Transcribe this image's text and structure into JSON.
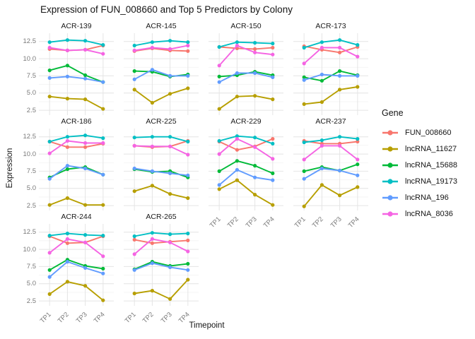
{
  "title": "Expression of FUN_008660 and Top 5 Predictors by Colony",
  "axes": {
    "x_label": "Timepoint",
    "y_label": "Expression",
    "y_tick_labels": [
      "12.5",
      "10.0",
      "7.5",
      "5.0",
      "2.5"
    ],
    "x_ticks": [
      "TP1",
      "TP2",
      "TP3",
      "TP4"
    ]
  },
  "legend": {
    "title": "Gene",
    "entries": [
      {
        "label": "FUN_008660",
        "color": "#F8766D"
      },
      {
        "label": "lncRNA_11627",
        "color": "#B79F00"
      },
      {
        "label": "lncRNA_15688",
        "color": "#00BA38"
      },
      {
        "label": "lncRNA_19173",
        "color": "#00BFC4"
      },
      {
        "label": "lncRNA_196",
        "color": "#619CFF"
      },
      {
        "label": "lncRNA_8036",
        "color": "#F564E3"
      }
    ]
  },
  "chart_data": {
    "type": "line",
    "x": [
      "TP1",
      "TP2",
      "TP3",
      "TP4"
    ],
    "xlabel": "Timepoint",
    "ylabel": "Expression",
    "ylim": [
      1.8,
      13.7
    ],
    "y_major_gridlines": [
      2.5,
      5.0,
      7.5,
      10.0,
      12.5
    ],
    "y_minor_gridlines": [
      3.75,
      6.25,
      8.75,
      11.25
    ],
    "legend_position": "right",
    "series_order": [
      "FUN_008660",
      "lncRNA_11627",
      "lncRNA_15688",
      "lncRNA_19173",
      "lncRNA_196",
      "lncRNA_8036"
    ],
    "facets": [
      {
        "colony": "ACR-139",
        "series": {
          "FUN_008660": [
            11.4,
            11.2,
            11.3,
            11.9
          ],
          "lncRNA_11627": [
            4.5,
            4.2,
            4.1,
            2.7
          ],
          "lncRNA_15688": [
            8.3,
            9.0,
            7.6,
            6.6
          ],
          "lncRNA_19173": [
            12.4,
            12.7,
            12.6,
            12.0
          ],
          "lncRNA_196": [
            7.2,
            7.4,
            7.1,
            6.6
          ],
          "lncRNA_8036": [
            11.6,
            11.2,
            11.3,
            10.7
          ]
        }
      },
      {
        "colony": "ACR-145",
        "series": {
          "FUN_008660": [
            11.1,
            11.5,
            11.2,
            11.1
          ],
          "lncRNA_11627": [
            5.5,
            3.6,
            4.9,
            5.7
          ],
          "lncRNA_15688": [
            8.2,
            8.1,
            7.4,
            7.7
          ],
          "lncRNA_19173": [
            11.9,
            12.4,
            12.6,
            12.4
          ],
          "lncRNA_196": [
            7.0,
            8.4,
            7.5,
            7.5
          ],
          "lncRNA_8036": [
            11.2,
            11.6,
            11.4,
            11.9
          ]
        }
      },
      {
        "colony": "ACR-150",
        "series": {
          "FUN_008660": [
            11.7,
            11.5,
            11.4,
            11.6
          ],
          "lncRNA_11627": [
            2.7,
            4.5,
            4.6,
            4.1
          ],
          "lncRNA_15688": [
            7.4,
            7.6,
            8.1,
            7.6
          ],
          "lncRNA_19173": [
            11.7,
            12.4,
            12.3,
            12.2
          ],
          "lncRNA_196": [
            6.6,
            7.9,
            7.9,
            7.3
          ],
          "lncRNA_8036": [
            9.0,
            11.9,
            10.9,
            10.6
          ]
        }
      },
      {
        "colony": "ACR-173",
        "series": {
          "FUN_008660": [
            11.8,
            11.3,
            10.9,
            11.7
          ],
          "lncRNA_11627": [
            3.4,
            3.7,
            5.5,
            5.9
          ],
          "lncRNA_15688": [
            7.3,
            6.8,
            8.2,
            7.6
          ],
          "lncRNA_19173": [
            11.6,
            12.4,
            12.7,
            12.0
          ],
          "lncRNA_196": [
            6.9,
            7.7,
            7.5,
            7.5
          ],
          "lncRNA_8036": [
            9.3,
            11.6,
            11.6,
            10.3
          ]
        }
      },
      {
        "colony": "ACR-186",
        "series": {
          "FUN_008660": [
            11.8,
            11.0,
            11.0,
            11.5
          ],
          "lncRNA_11627": [
            2.6,
            3.6,
            2.6,
            2.6
          ],
          "lncRNA_15688": [
            6.6,
            7.8,
            8.1,
            7.0
          ],
          "lncRNA_19173": [
            11.8,
            12.5,
            12.7,
            12.3
          ],
          "lncRNA_196": [
            6.4,
            8.3,
            7.9,
            7.0
          ],
          "lncRNA_8036": [
            10.1,
            11.9,
            11.6,
            11.6
          ]
        }
      },
      {
        "colony": "ACR-225",
        "series": {
          "FUN_008660": [
            11.2,
            11.0,
            11.1,
            11.9
          ],
          "lncRNA_11627": [
            4.6,
            5.4,
            4.2,
            3.6
          ],
          "lncRNA_15688": [
            7.8,
            7.4,
            7.5,
            6.6
          ],
          "lncRNA_19173": [
            12.4,
            12.5,
            12.5,
            11.8
          ],
          "lncRNA_196": [
            7.9,
            7.5,
            7.2,
            6.9
          ],
          "lncRNA_8036": [
            11.2,
            11.1,
            11.1,
            9.9
          ]
        }
      },
      {
        "colony": "ACR-229",
        "series": {
          "FUN_008660": [
            11.8,
            10.6,
            11.1,
            12.2
          ],
          "lncRNA_11627": [
            4.9,
            6.2,
            4.1,
            2.6
          ],
          "lncRNA_15688": [
            7.5,
            9.0,
            8.3,
            7.2
          ],
          "lncRNA_19173": [
            11.9,
            12.6,
            12.4,
            11.5
          ],
          "lncRNA_196": [
            5.5,
            7.7,
            6.6,
            6.2
          ],
          "lncRNA_8036": [
            10.0,
            12.2,
            11.0,
            9.3
          ]
        }
      },
      {
        "colony": "ACR-237",
        "series": {
          "FUN_008660": [
            11.9,
            11.5,
            11.5,
            11.8
          ],
          "lncRNA_11627": [
            2.4,
            5.5,
            4.0,
            5.2
          ],
          "lncRNA_15688": [
            7.5,
            8.1,
            7.6,
            8.5
          ],
          "lncRNA_19173": [
            11.7,
            12.0,
            12.5,
            12.2
          ],
          "lncRNA_196": [
            6.4,
            7.9,
            7.6,
            6.9
          ],
          "lncRNA_8036": [
            9.2,
            11.2,
            11.2,
            9.2
          ]
        }
      },
      {
        "colony": "ACR-244",
        "series": {
          "FUN_008660": [
            11.9,
            10.9,
            11.0,
            11.9
          ],
          "lncRNA_11627": [
            3.5,
            5.3,
            4.7,
            2.6
          ],
          "lncRNA_15688": [
            7.0,
            8.5,
            7.6,
            7.2
          ],
          "lncRNA_19173": [
            12.0,
            12.3,
            12.1,
            12.0
          ],
          "lncRNA_196": [
            6.0,
            8.2,
            7.3,
            6.5
          ],
          "lncRNA_8036": [
            9.5,
            11.5,
            11.0,
            9.0
          ]
        }
      },
      {
        "colony": "ACR-265",
        "series": {
          "FUN_008660": [
            11.4,
            10.9,
            11.1,
            11.3
          ],
          "lncRNA_11627": [
            3.6,
            4.0,
            2.8,
            5.6
          ],
          "lncRNA_15688": [
            7.1,
            8.2,
            7.6,
            7.9
          ],
          "lncRNA_19173": [
            11.9,
            12.4,
            12.2,
            12.3
          ],
          "lncRNA_196": [
            7.0,
            8.0,
            7.4,
            7.0
          ],
          "lncRNA_8036": [
            9.3,
            11.5,
            11.0,
            9.7
          ]
        }
      }
    ]
  },
  "style": {
    "major_grid_color": "#E4E4E4",
    "minor_grid_color": "#F2F2F2",
    "tick_text_color": "#7a7a7a"
  }
}
